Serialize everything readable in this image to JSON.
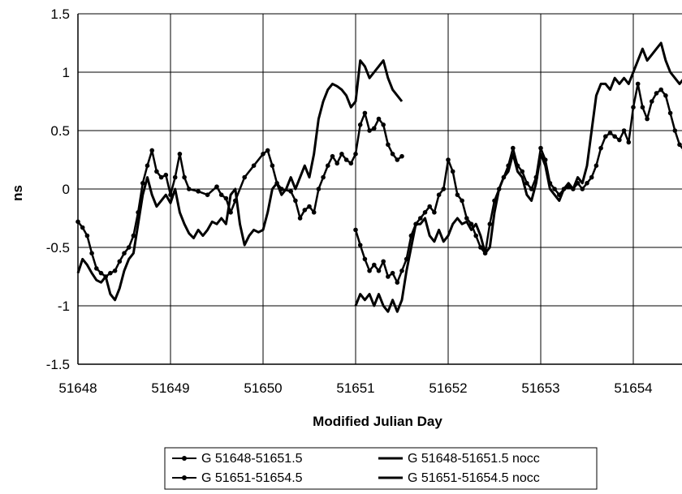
{
  "chart_data": {
    "type": "line",
    "title": "",
    "xlabel": "Modified Julian Day",
    "ylabel": "ns",
    "xlim": [
      51648,
      51654.6
    ],
    "ylim": [
      -1.5,
      1.5
    ],
    "xticks": [
      51648,
      51649,
      51650,
      51651,
      51652,
      51653,
      51654
    ],
    "yticks": [
      -1.5,
      -1,
      -0.5,
      0,
      0.5,
      1,
      1.5
    ],
    "ytick_labels": [
      "-1.5",
      "-1",
      "-0.5",
      "0",
      "0.5",
      "1",
      "1.5"
    ],
    "xtick_labels": [
      "51648",
      "51649",
      "51650",
      "51651",
      "51652",
      "51653",
      "51654"
    ],
    "grid": true,
    "legend": "bottom",
    "series": [
      {
        "name": "G 51648-51651.5",
        "marker": true,
        "points": [
          [
            51648.0,
            -0.28
          ],
          [
            51648.05,
            -0.33
          ],
          [
            51648.1,
            -0.4
          ],
          [
            51648.15,
            -0.55
          ],
          [
            51648.2,
            -0.68
          ],
          [
            51648.25,
            -0.72
          ],
          [
            51648.3,
            -0.75
          ],
          [
            51648.35,
            -0.72
          ],
          [
            51648.4,
            -0.7
          ],
          [
            51648.45,
            -0.62
          ],
          [
            51648.5,
            -0.55
          ],
          [
            51648.55,
            -0.5
          ],
          [
            51648.6,
            -0.4
          ],
          [
            51648.65,
            -0.2
          ],
          [
            51648.7,
            0.05
          ],
          [
            51648.75,
            0.2
          ],
          [
            51648.8,
            0.33
          ],
          [
            51648.85,
            0.15
          ],
          [
            51648.9,
            0.1
          ],
          [
            51648.95,
            0.12
          ],
          [
            51649.0,
            -0.05
          ],
          [
            51649.05,
            0.1
          ],
          [
            51649.1,
            0.3
          ],
          [
            51649.15,
            0.1
          ],
          [
            51649.2,
            0.0
          ],
          [
            51649.3,
            -0.02
          ],
          [
            51649.4,
            -0.05
          ],
          [
            51649.5,
            0.02
          ],
          [
            51649.55,
            -0.05
          ],
          [
            51649.6,
            -0.08
          ],
          [
            51649.65,
            -0.2
          ],
          [
            51649.7,
            -0.1
          ],
          [
            51649.8,
            0.1
          ],
          [
            51649.9,
            0.2
          ],
          [
            51650.0,
            0.3
          ],
          [
            51650.05,
            0.33
          ],
          [
            51650.1,
            0.2
          ],
          [
            51650.15,
            0.05
          ],
          [
            51650.2,
            0.0
          ],
          [
            51650.3,
            -0.02
          ],
          [
            51650.35,
            -0.1
          ],
          [
            51650.4,
            -0.25
          ],
          [
            51650.45,
            -0.18
          ],
          [
            51650.5,
            -0.15
          ],
          [
            51650.55,
            -0.2
          ],
          [
            51650.6,
            0.0
          ],
          [
            51650.65,
            0.1
          ],
          [
            51650.7,
            0.2
          ],
          [
            51650.75,
            0.28
          ],
          [
            51650.8,
            0.22
          ],
          [
            51650.85,
            0.3
          ],
          [
            51650.9,
            0.25
          ],
          [
            51650.95,
            0.22
          ],
          [
            51651.0,
            0.3
          ],
          [
            51651.05,
            0.55
          ],
          [
            51651.1,
            0.65
          ],
          [
            51651.15,
            0.5
          ],
          [
            51651.2,
            0.52
          ],
          [
            51651.25,
            0.6
          ],
          [
            51651.3,
            0.55
          ],
          [
            51651.35,
            0.38
          ],
          [
            51651.4,
            0.3
          ],
          [
            51651.45,
            0.25
          ],
          [
            51651.5,
            0.28
          ]
        ]
      },
      {
        "name": "G 51651-51654.5",
        "marker": true,
        "points": [
          [
            51651.0,
            -0.35
          ],
          [
            51651.05,
            -0.48
          ],
          [
            51651.1,
            -0.6
          ],
          [
            51651.15,
            -0.7
          ],
          [
            51651.2,
            -0.65
          ],
          [
            51651.25,
            -0.7
          ],
          [
            51651.3,
            -0.62
          ],
          [
            51651.35,
            -0.75
          ],
          [
            51651.4,
            -0.72
          ],
          [
            51651.45,
            -0.8
          ],
          [
            51651.5,
            -0.7
          ],
          [
            51651.55,
            -0.6
          ],
          [
            51651.6,
            -0.4
          ],
          [
            51651.65,
            -0.3
          ],
          [
            51651.7,
            -0.25
          ],
          [
            51651.75,
            -0.2
          ],
          [
            51651.8,
            -0.15
          ],
          [
            51651.85,
            -0.2
          ],
          [
            51651.9,
            -0.05
          ],
          [
            51651.95,
            0.0
          ],
          [
            51652.0,
            0.25
          ],
          [
            51652.05,
            0.15
          ],
          [
            51652.1,
            -0.05
          ],
          [
            51652.15,
            -0.1
          ],
          [
            51652.2,
            -0.25
          ],
          [
            51652.25,
            -0.3
          ],
          [
            51652.3,
            -0.4
          ],
          [
            51652.35,
            -0.5
          ],
          [
            51652.4,
            -0.55
          ],
          [
            51652.45,
            -0.3
          ],
          [
            51652.5,
            -0.1
          ],
          [
            51652.55,
            0.0
          ],
          [
            51652.6,
            0.1
          ],
          [
            51652.65,
            0.2
          ],
          [
            51652.7,
            0.35
          ],
          [
            51652.75,
            0.2
          ],
          [
            51652.8,
            0.15
          ],
          [
            51652.85,
            0.05
          ],
          [
            51652.9,
            0.0
          ],
          [
            51652.95,
            0.1
          ],
          [
            51653.0,
            0.35
          ],
          [
            51653.05,
            0.25
          ],
          [
            51653.1,
            0.05
          ],
          [
            51653.15,
            0.0
          ],
          [
            51653.2,
            -0.05
          ],
          [
            51653.25,
            0.0
          ],
          [
            51653.3,
            0.02
          ],
          [
            51653.35,
            0.0
          ],
          [
            51653.4,
            0.05
          ],
          [
            51653.45,
            0.0
          ],
          [
            51653.5,
            0.05
          ],
          [
            51653.55,
            0.1
          ],
          [
            51653.6,
            0.2
          ],
          [
            51653.65,
            0.35
          ],
          [
            51653.7,
            0.45
          ],
          [
            51653.75,
            0.48
          ],
          [
            51653.8,
            0.45
          ],
          [
            51653.85,
            0.42
          ],
          [
            51653.9,
            0.5
          ],
          [
            51653.95,
            0.4
          ],
          [
            51654.0,
            0.7
          ],
          [
            51654.05,
            0.9
          ],
          [
            51654.1,
            0.7
          ],
          [
            51654.15,
            0.6
          ],
          [
            51654.2,
            0.75
          ],
          [
            51654.25,
            0.82
          ],
          [
            51654.3,
            0.85
          ],
          [
            51654.35,
            0.8
          ],
          [
            51654.4,
            0.65
          ],
          [
            51654.45,
            0.5
          ],
          [
            51654.5,
            0.38
          ],
          [
            51654.55,
            0.33
          ]
        ]
      },
      {
        "name": "G 51648-51651.5 nocc",
        "marker": false,
        "points": [
          [
            51648.0,
            -0.72
          ],
          [
            51648.05,
            -0.6
          ],
          [
            51648.1,
            -0.65
          ],
          [
            51648.15,
            -0.72
          ],
          [
            51648.2,
            -0.78
          ],
          [
            51648.25,
            -0.8
          ],
          [
            51648.3,
            -0.75
          ],
          [
            51648.35,
            -0.9
          ],
          [
            51648.4,
            -0.95
          ],
          [
            51648.45,
            -0.85
          ],
          [
            51648.5,
            -0.7
          ],
          [
            51648.55,
            -0.6
          ],
          [
            51648.6,
            -0.55
          ],
          [
            51648.65,
            -0.3
          ],
          [
            51648.7,
            -0.05
          ],
          [
            51648.75,
            0.1
          ],
          [
            51648.8,
            -0.05
          ],
          [
            51648.85,
            -0.15
          ],
          [
            51648.9,
            -0.1
          ],
          [
            51648.95,
            -0.05
          ],
          [
            51649.0,
            -0.12
          ],
          [
            51649.05,
            0.0
          ],
          [
            51649.1,
            -0.2
          ],
          [
            51649.15,
            -0.3
          ],
          [
            51649.2,
            -0.38
          ],
          [
            51649.25,
            -0.42
          ],
          [
            51649.3,
            -0.35
          ],
          [
            51649.35,
            -0.4
          ],
          [
            51649.4,
            -0.35
          ],
          [
            51649.45,
            -0.28
          ],
          [
            51649.5,
            -0.3
          ],
          [
            51649.55,
            -0.25
          ],
          [
            51649.6,
            -0.3
          ],
          [
            51649.65,
            -0.05
          ],
          [
            51649.7,
            0.0
          ],
          [
            51649.75,
            -0.3
          ],
          [
            51649.8,
            -0.48
          ],
          [
            51649.85,
            -0.4
          ],
          [
            51649.9,
            -0.35
          ],
          [
            51649.95,
            -0.37
          ],
          [
            51650.0,
            -0.35
          ],
          [
            51650.05,
            -0.2
          ],
          [
            51650.1,
            0.0
          ],
          [
            51650.15,
            0.05
          ],
          [
            51650.2,
            -0.05
          ],
          [
            51650.25,
            0.0
          ],
          [
            51650.3,
            0.1
          ],
          [
            51650.35,
            0.0
          ],
          [
            51650.4,
            0.1
          ],
          [
            51650.45,
            0.2
          ],
          [
            51650.5,
            0.1
          ],
          [
            51650.55,
            0.3
          ],
          [
            51650.6,
            0.6
          ],
          [
            51650.65,
            0.75
          ],
          [
            51650.7,
            0.85
          ],
          [
            51650.75,
            0.9
          ],
          [
            51650.8,
            0.88
          ],
          [
            51650.85,
            0.85
          ],
          [
            51650.9,
            0.8
          ],
          [
            51650.95,
            0.7
          ],
          [
            51651.0,
            0.75
          ],
          [
            51651.05,
            1.1
          ],
          [
            51651.1,
            1.05
          ],
          [
            51651.15,
            0.95
          ],
          [
            51651.2,
            1.0
          ],
          [
            51651.25,
            1.05
          ],
          [
            51651.3,
            1.1
          ],
          [
            51651.35,
            0.95
          ],
          [
            51651.4,
            0.85
          ],
          [
            51651.45,
            0.8
          ],
          [
            51651.5,
            0.75
          ]
        ]
      },
      {
        "name": "G 51651-51654.5 nocc",
        "marker": false,
        "points": [
          [
            51651.0,
            -1.0
          ],
          [
            51651.05,
            -0.9
          ],
          [
            51651.1,
            -0.95
          ],
          [
            51651.15,
            -0.9
          ],
          [
            51651.2,
            -1.0
          ],
          [
            51651.25,
            -0.9
          ],
          [
            51651.3,
            -1.0
          ],
          [
            51651.35,
            -1.05
          ],
          [
            51651.4,
            -0.95
          ],
          [
            51651.45,
            -1.05
          ],
          [
            51651.5,
            -0.95
          ],
          [
            51651.55,
            -0.7
          ],
          [
            51651.6,
            -0.5
          ],
          [
            51651.65,
            -0.3
          ],
          [
            51651.7,
            -0.3
          ],
          [
            51651.75,
            -0.25
          ],
          [
            51651.8,
            -0.4
          ],
          [
            51651.85,
            -0.45
          ],
          [
            51651.9,
            -0.35
          ],
          [
            51651.95,
            -0.45
          ],
          [
            51652.0,
            -0.4
          ],
          [
            51652.05,
            -0.3
          ],
          [
            51652.1,
            -0.25
          ],
          [
            51652.15,
            -0.3
          ],
          [
            51652.2,
            -0.28
          ],
          [
            51652.25,
            -0.35
          ],
          [
            51652.3,
            -0.3
          ],
          [
            51652.35,
            -0.4
          ],
          [
            51652.4,
            -0.55
          ],
          [
            51652.45,
            -0.5
          ],
          [
            51652.5,
            -0.2
          ],
          [
            51652.55,
            0.0
          ],
          [
            51652.6,
            0.1
          ],
          [
            51652.65,
            0.15
          ],
          [
            51652.7,
            0.3
          ],
          [
            51652.75,
            0.15
          ],
          [
            51652.8,
            0.1
          ],
          [
            51652.85,
            -0.05
          ],
          [
            51652.9,
            -0.1
          ],
          [
            51652.95,
            0.05
          ],
          [
            51653.0,
            0.3
          ],
          [
            51653.05,
            0.2
          ],
          [
            51653.1,
            0.0
          ],
          [
            51653.15,
            -0.05
          ],
          [
            51653.2,
            -0.1
          ],
          [
            51653.25,
            0.0
          ],
          [
            51653.3,
            0.05
          ],
          [
            51653.35,
            0.0
          ],
          [
            51653.4,
            0.1
          ],
          [
            51653.45,
            0.05
          ],
          [
            51653.5,
            0.2
          ],
          [
            51653.55,
            0.5
          ],
          [
            51653.6,
            0.8
          ],
          [
            51653.65,
            0.9
          ],
          [
            51653.7,
            0.9
          ],
          [
            51653.75,
            0.85
          ],
          [
            51653.8,
            0.95
          ],
          [
            51653.85,
            0.9
          ],
          [
            51653.9,
            0.95
          ],
          [
            51653.95,
            0.9
          ],
          [
            51654.0,
            1.0
          ],
          [
            51654.05,
            1.1
          ],
          [
            51654.1,
            1.2
          ],
          [
            51654.15,
            1.1
          ],
          [
            51654.2,
            1.15
          ],
          [
            51654.25,
            1.2
          ],
          [
            51654.3,
            1.25
          ],
          [
            51654.35,
            1.1
          ],
          [
            51654.4,
            1.0
          ],
          [
            51654.45,
            0.95
          ],
          [
            51654.5,
            0.9
          ],
          [
            51654.55,
            0.95
          ]
        ]
      }
    ]
  }
}
